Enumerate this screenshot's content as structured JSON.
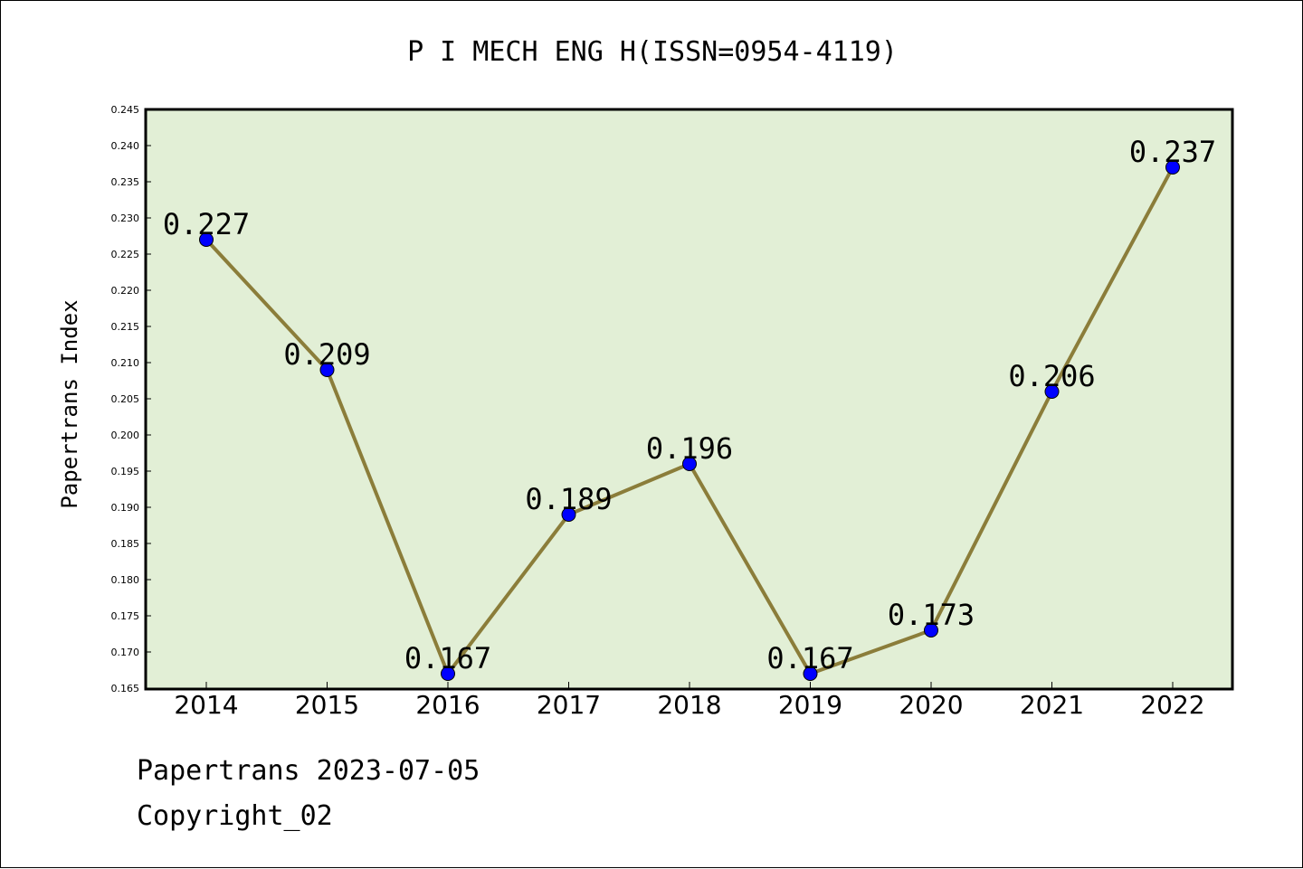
{
  "chart_data": {
    "type": "line",
    "title": "P I MECH ENG H(ISSN=0954-4119)",
    "xlabel": "",
    "ylabel": "Papertrans Index",
    "categories": [
      "2014",
      "2015",
      "2016",
      "2017",
      "2018",
      "2019",
      "2020",
      "2021",
      "2022"
    ],
    "series": [
      {
        "values": [
          0.227,
          0.209,
          0.167,
          0.189,
          0.196,
          0.167,
          0.173,
          0.206,
          0.237
        ]
      }
    ],
    "data_labels": [
      "0.227",
      "0.209",
      "0.167",
      "0.189",
      "0.196",
      "0.167",
      "0.173",
      "0.206",
      "0.237"
    ],
    "ylim": [
      0.165,
      0.245
    ],
    "yticks": [
      "0.165",
      "0.170",
      "0.175",
      "0.180",
      "0.185",
      "0.190",
      "0.195",
      "0.200",
      "0.205",
      "0.210",
      "0.215",
      "0.220",
      "0.225",
      "0.230",
      "0.235",
      "0.240",
      "0.245"
    ],
    "grid": false,
    "colors": {
      "plot_background": "#e2efd6",
      "line": "#8b7d3a",
      "marker": "#0000ff"
    }
  },
  "footer": {
    "line1": "Papertrans 2023-07-05",
    "line2": "Copyright_02"
  }
}
